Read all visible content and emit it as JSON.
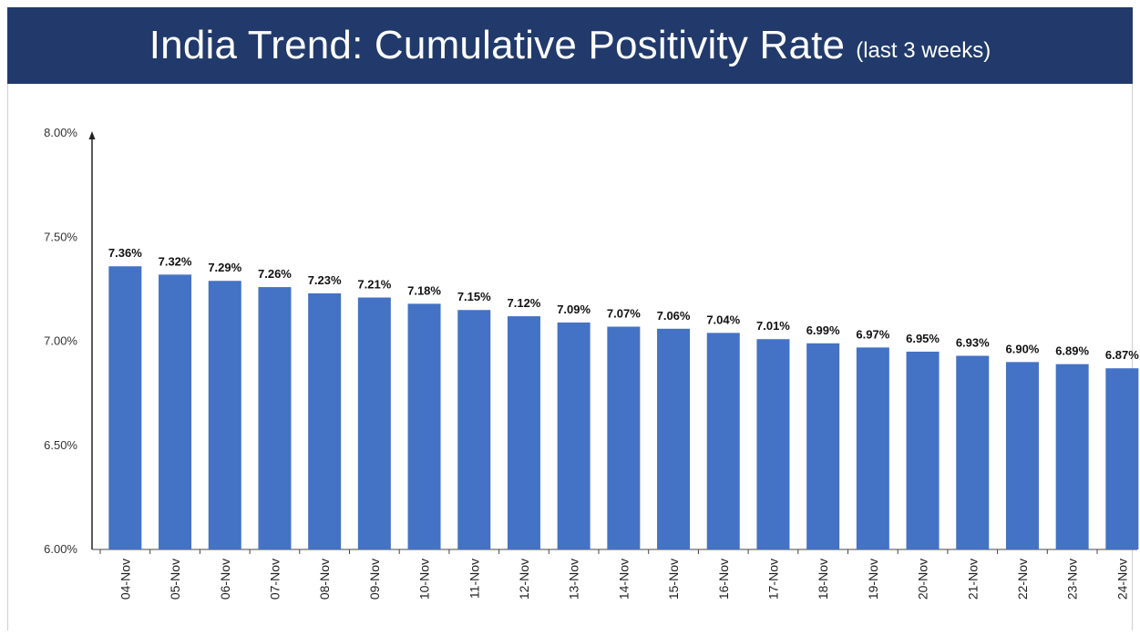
{
  "header": {
    "title": "India Trend: Cumulative Positivity Rate",
    "subtitle": "(last 3 weeks)"
  },
  "colors": {
    "header_bg": "#213a6b",
    "bar": "#4472c4"
  },
  "chart_data": {
    "type": "bar",
    "title": "India Trend: Cumulative Positivity Rate (last 3 weeks)",
    "xlabel": "",
    "ylabel": "",
    "categories": [
      "04-Nov",
      "05-Nov",
      "06-Nov",
      "07-Nov",
      "08-Nov",
      "09-Nov",
      "10-Nov",
      "11-Nov",
      "12-Nov",
      "13-Nov",
      "14-Nov",
      "15-Nov",
      "16-Nov",
      "17-Nov",
      "18-Nov",
      "19-Nov",
      "20-Nov",
      "21-Nov",
      "22-Nov",
      "23-Nov",
      "24-Nov"
    ],
    "values": [
      7.36,
      7.32,
      7.29,
      7.26,
      7.23,
      7.21,
      7.18,
      7.15,
      7.12,
      7.09,
      7.07,
      7.06,
      7.04,
      7.01,
      6.99,
      6.97,
      6.95,
      6.93,
      6.9,
      6.89,
      6.87
    ],
    "data_labels": [
      "7.36%",
      "7.32%",
      "7.29%",
      "7.26%",
      "7.23%",
      "7.21%",
      "7.18%",
      "7.15%",
      "7.12%",
      "7.09%",
      "7.07%",
      "7.06%",
      "7.04%",
      "7.01%",
      "6.99%",
      "6.97%",
      "6.95%",
      "6.93%",
      "6.90%",
      "6.89%",
      "6.87%"
    ],
    "ylim": [
      6.0,
      8.0
    ],
    "yticks": [
      6.0,
      6.5,
      7.0,
      7.5,
      8.0
    ],
    "ytick_labels": [
      "6.00%",
      "6.50%",
      "7.00%",
      "7.50%",
      "8.00%"
    ],
    "grid": false,
    "legend": "none"
  }
}
